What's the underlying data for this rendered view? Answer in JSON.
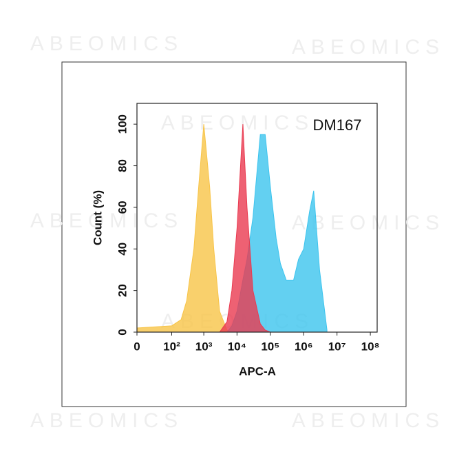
{
  "watermark": "ABEOMICS",
  "chart_data": {
    "type": "histogram-overlay",
    "annotation": "DM167",
    "xlabel": "APC-A",
    "ylabel": "Count  (%)",
    "x": [
      0,
      100,
      200,
      300,
      500,
      700,
      1000,
      1500,
      2000,
      3000,
      5000,
      7000,
      10000,
      15000,
      20000,
      30000,
      50000,
      70000,
      100000,
      150000,
      200000,
      300000,
      500000,
      700000,
      1000000,
      1500000,
      2000000,
      3000000,
      5000000
    ],
    "series": [
      {
        "color": "#f8c447",
        "values": [
          2,
          3,
          6,
          15,
          40,
          70,
          100,
          70,
          40,
          10,
          1,
          0,
          0,
          0,
          0,
          0,
          0,
          0,
          0,
          0,
          0,
          0,
          0,
          0,
          0,
          0,
          0,
          0,
          0
        ]
      },
      {
        "color": "#3cc4ee",
        "values": [
          0,
          0,
          0,
          0,
          0,
          0,
          0,
          0,
          0,
          0,
          0,
          3,
          10,
          25,
          35,
          55,
          95,
          95,
          70,
          45,
          33,
          25,
          25,
          35,
          40,
          58,
          68,
          30,
          1
        ]
      },
      {
        "color": "#ea3a50",
        "values": [
          0,
          0,
          0,
          0,
          0,
          0,
          0,
          0,
          0,
          0,
          5,
          20,
          50,
          100,
          60,
          20,
          4,
          1,
          0,
          0,
          0,
          0,
          0,
          0,
          0,
          0,
          0,
          0,
          0
        ]
      }
    ],
    "xlim": [
      0,
      160000000
    ],
    "xticks": [
      0,
      {
        "value": 100,
        "label": "10²"
      },
      {
        "value": 1000,
        "label": "10³"
      },
      {
        "value": 10000,
        "label": "10⁴"
      },
      {
        "value": 100000,
        "label": "10⁵"
      },
      {
        "value": 1000000,
        "label": "10⁶"
      },
      {
        "value": 10000000,
        "label": "10⁷"
      },
      {
        "value": 100000000,
        "label": "10⁸"
      }
    ],
    "ylim": [
      0,
      110
    ],
    "yticks": [
      0,
      20,
      40,
      60,
      80,
      100
    ]
  }
}
